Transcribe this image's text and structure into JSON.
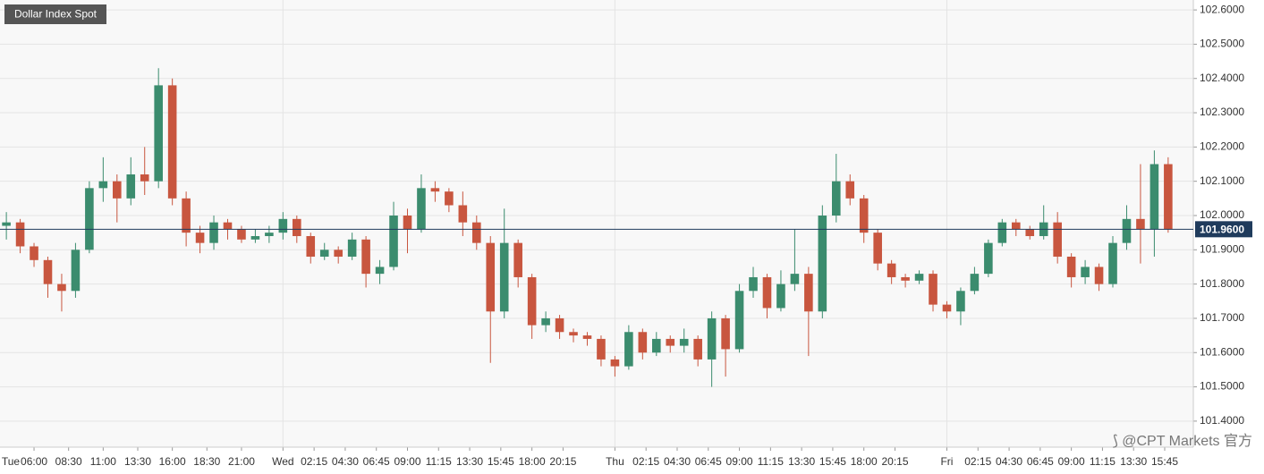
{
  "chart_data": {
    "type": "candlestick",
    "title": "Dollar Index Spot",
    "watermark": "⟆ @CPT Markets 官方",
    "up_color": "#3b8c6e",
    "down_color": "#c8563f",
    "last_price": {
      "value": 101.96,
      "label": "101.9600"
    },
    "last_color": "#1f3b5c",
    "grid": true,
    "xlim": [
      3.54,
      89.82
    ],
    "ylim": [
      101.324,
      102.629
    ],
    "yticks": [
      {
        "value": 101.4,
        "label": "101.4000"
      },
      {
        "value": 101.5,
        "label": "101.5000"
      },
      {
        "value": 101.6,
        "label": "101.6000"
      },
      {
        "value": 101.7,
        "label": "101.7000"
      },
      {
        "value": 101.8,
        "label": "101.8000"
      },
      {
        "value": 101.9,
        "label": "101.9000"
      },
      {
        "value": 102.0,
        "label": "102.0000"
      },
      {
        "value": 102.1,
        "label": "102.1000"
      },
      {
        "value": 102.2,
        "label": "102.2000"
      },
      {
        "value": 102.3,
        "label": "102.3000"
      },
      {
        "value": 102.4,
        "label": "102.4000"
      },
      {
        "value": 102.5,
        "label": "102.5000"
      },
      {
        "value": 102.6,
        "label": "102.6000"
      }
    ],
    "xticks": [
      {
        "value": 0,
        "label": "Tue"
      },
      {
        "value": 6,
        "label": "06:00"
      },
      {
        "value": 8.5,
        "label": "08:30"
      },
      {
        "value": 11,
        "label": "11:00"
      },
      {
        "value": 13.5,
        "label": "13:30"
      },
      {
        "value": 16,
        "label": "16:00"
      },
      {
        "value": 18.5,
        "label": "18:30"
      },
      {
        "value": 21,
        "label": "21:00"
      },
      {
        "value": 24,
        "label": "Wed"
      },
      {
        "value": 26.25,
        "label": "02:15"
      },
      {
        "value": 28.5,
        "label": "04:30"
      },
      {
        "value": 30.75,
        "label": "06:45"
      },
      {
        "value": 33,
        "label": "09:00"
      },
      {
        "value": 35.25,
        "label": "11:15"
      },
      {
        "value": 37.5,
        "label": "13:30"
      },
      {
        "value": 39.75,
        "label": "15:45"
      },
      {
        "value": 42,
        "label": "18:00"
      },
      {
        "value": 44.25,
        "label": "20:15"
      },
      {
        "value": 48,
        "label": "Thu"
      },
      {
        "value": 50.25,
        "label": "02:15"
      },
      {
        "value": 52.5,
        "label": "04:30"
      },
      {
        "value": 54.75,
        "label": "06:45"
      },
      {
        "value": 57,
        "label": "09:00"
      },
      {
        "value": 59.25,
        "label": "11:15"
      },
      {
        "value": 61.5,
        "label": "13:30"
      },
      {
        "value": 63.75,
        "label": "15:45"
      },
      {
        "value": 66,
        "label": "18:00"
      },
      {
        "value": 68.25,
        "label": "20:15"
      },
      {
        "value": 72,
        "label": "Fri"
      },
      {
        "value": 74.25,
        "label": "02:15"
      },
      {
        "value": 76.5,
        "label": "04:30"
      },
      {
        "value": 78.75,
        "label": "06:45"
      },
      {
        "value": 81,
        "label": "09:00"
      },
      {
        "value": 83.25,
        "label": "11:15"
      },
      {
        "value": 85.5,
        "label": "13:30"
      },
      {
        "value": 87.75,
        "label": "15:45"
      }
    ],
    "vgrid": [
      24,
      48,
      72
    ],
    "x": [
      4,
      5,
      6,
      7,
      8,
      9,
      10,
      11,
      12,
      13,
      14,
      15,
      16,
      17,
      18,
      19,
      20,
      21,
      22,
      23,
      24,
      25,
      26,
      27,
      28,
      29,
      30,
      31,
      32,
      33,
      34,
      35,
      36,
      37,
      38,
      39,
      40,
      41,
      42,
      43,
      44,
      45,
      46,
      47,
      48,
      49,
      50,
      51,
      52,
      53,
      54,
      55,
      56,
      57,
      58,
      59,
      60,
      61,
      62,
      63,
      64,
      65,
      66,
      67,
      68,
      69,
      70,
      71,
      72,
      73,
      74,
      75,
      76,
      77,
      78,
      79,
      80,
      81,
      82,
      83,
      84,
      85,
      86,
      87,
      88
    ],
    "open": [
      101.97,
      101.98,
      101.91,
      101.87,
      101.8,
      101.78,
      101.9,
      102.08,
      102.1,
      102.05,
      102.12,
      102.1,
      102.38,
      102.05,
      101.95,
      101.92,
      101.98,
      101.96,
      101.93,
      101.94,
      101.95,
      101.99,
      101.94,
      101.88,
      101.9,
      101.88,
      101.93,
      101.83,
      101.85,
      102.0,
      101.96,
      102.08,
      102.07,
      102.03,
      101.98,
      101.92,
      101.72,
      101.92,
      101.82,
      101.68,
      101.7,
      101.66,
      101.65,
      101.64,
      101.58,
      101.56,
      101.66,
      101.6,
      101.64,
      101.62,
      101.64,
      101.58,
      101.7,
      101.61,
      101.78,
      101.82,
      101.73,
      101.8,
      101.83,
      101.72,
      102.0,
      102.1,
      102.05,
      101.95,
      101.86,
      101.82,
      101.81,
      101.83,
      101.74,
      101.72,
      101.78,
      101.83,
      101.92,
      101.98,
      101.96,
      101.94,
      101.98,
      101.88,
      101.82,
      101.85,
      101.8,
      101.92,
      101.99,
      101.96,
      102.15
    ],
    "high": [
      102.01,
      101.99,
      101.92,
      101.88,
      101.83,
      101.92,
      102.1,
      102.17,
      102.12,
      102.17,
      102.2,
      102.43,
      102.4,
      102.07,
      101.97,
      102.0,
      101.99,
      101.97,
      101.96,
      101.97,
      102.01,
      102.0,
      101.95,
      101.92,
      101.91,
      101.95,
      101.94,
      101.87,
      102.04,
      102.02,
      102.12,
      102.1,
      102.08,
      102.07,
      102.0,
      101.94,
      102.02,
      101.93,
      101.83,
      101.72,
      101.71,
      101.67,
      101.66,
      101.65,
      101.59,
      101.68,
      101.67,
      101.66,
      101.65,
      101.67,
      101.65,
      101.72,
      101.71,
      101.8,
      101.85,
      101.83,
      101.84,
      101.96,
      101.85,
      102.03,
      102.18,
      102.12,
      102.06,
      101.96,
      101.87,
      101.83,
      101.84,
      101.84,
      101.75,
      101.79,
      101.85,
      101.93,
      101.99,
      101.99,
      101.97,
      102.03,
      102.01,
      101.89,
      101.87,
      101.86,
      101.94,
      102.03,
      102.15,
      102.19,
      102.17
    ],
    "low": [
      101.93,
      101.89,
      101.85,
      101.76,
      101.72,
      101.76,
      101.89,
      102.04,
      101.98,
      102.03,
      102.06,
      102.08,
      102.03,
      101.91,
      101.89,
      101.9,
      101.93,
      101.92,
      101.92,
      101.92,
      101.93,
      101.92,
      101.86,
      101.87,
      101.86,
      101.87,
      101.79,
      101.8,
      101.84,
      101.89,
      101.95,
      102.04,
      102.01,
      101.94,
      101.9,
      101.57,
      101.7,
      101.79,
      101.64,
      101.66,
      101.64,
      101.63,
      101.62,
      101.56,
      101.53,
      101.55,
      101.58,
      101.59,
      101.6,
      101.6,
      101.56,
      101.5,
      101.53,
      101.6,
      101.76,
      101.7,
      101.72,
      101.78,
      101.59,
      101.7,
      101.98,
      102.03,
      101.92,
      101.84,
      101.8,
      101.79,
      101.8,
      101.72,
      101.7,
      101.68,
      101.77,
      101.82,
      101.91,
      101.94,
      101.93,
      101.93,
      101.86,
      101.79,
      101.8,
      101.78,
      101.79,
      101.9,
      101.86,
      101.88,
      101.95
    ],
    "close": [
      101.98,
      101.91,
      101.87,
      101.8,
      101.78,
      101.9,
      102.08,
      102.1,
      102.05,
      102.12,
      102.1,
      102.38,
      102.05,
      101.95,
      101.92,
      101.98,
      101.96,
      101.93,
      101.94,
      101.95,
      101.99,
      101.94,
      101.88,
      101.9,
      101.88,
      101.93,
      101.83,
      101.85,
      102.0,
      101.96,
      102.08,
      102.07,
      102.03,
      101.98,
      101.92,
      101.72,
      101.92,
      101.82,
      101.68,
      101.7,
      101.66,
      101.65,
      101.64,
      101.58,
      101.56,
      101.66,
      101.6,
      101.64,
      101.62,
      101.64,
      101.58,
      101.7,
      101.61,
      101.78,
      101.82,
      101.73,
      101.8,
      101.83,
      101.72,
      102.0,
      102.1,
      102.05,
      101.95,
      101.86,
      101.82,
      101.81,
      101.83,
      101.74,
      101.72,
      101.78,
      101.83,
      101.92,
      101.98,
      101.96,
      101.94,
      101.98,
      101.88,
      101.82,
      101.85,
      101.8,
      101.92,
      101.99,
      101.96,
      102.15,
      101.96
    ]
  }
}
